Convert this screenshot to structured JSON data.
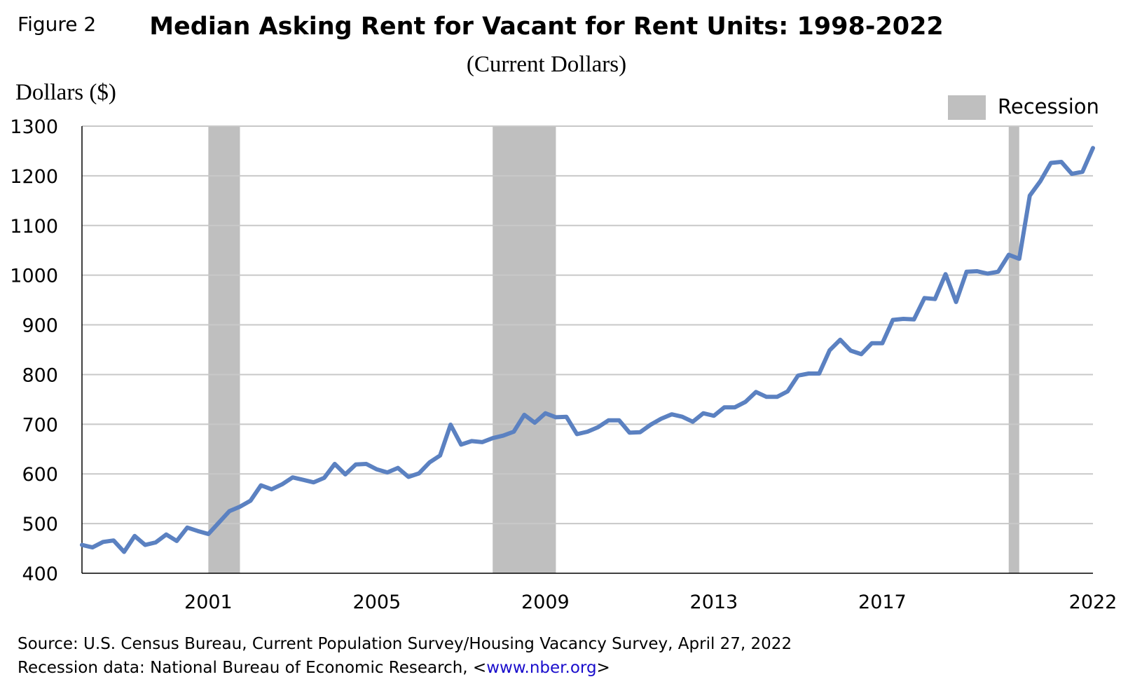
{
  "figure_label": "Figure 2",
  "chart_data": {
    "type": "line",
    "title": "Median Asking Rent for Vacant for Rent Units: 1998-2022",
    "subtitle": "(Current Dollars)",
    "ylabel": "Dollars ($)",
    "xlabel": "",
    "ylim": [
      400,
      1300
    ],
    "yticks": [
      400,
      500,
      600,
      700,
      800,
      900,
      1000,
      1100,
      1200,
      1300
    ],
    "xlim": [
      "1998-Q1",
      "2022-Q1"
    ],
    "xticks": [
      {
        "label": "2001",
        "year": 2001,
        "quarter": 1
      },
      {
        "label": "2005",
        "year": 2005,
        "quarter": 1
      },
      {
        "label": "2009",
        "year": 2009,
        "quarter": 1
      },
      {
        "label": "2013",
        "year": 2013,
        "quarter": 1
      },
      {
        "label": "2017",
        "year": 2017,
        "quarter": 1
      },
      {
        "label": "2022",
        "year": 2022,
        "quarter": 1
      }
    ],
    "grid": "horizontal",
    "line_color": "#5b81c1",
    "recession_color": "#bfbfbf",
    "legend": {
      "position": "top-right",
      "items": [
        {
          "label": "Recession",
          "color": "#bfbfbf"
        }
      ]
    },
    "recessions": [
      {
        "start": "2001-Q1",
        "end": "2001-Q4"
      },
      {
        "start": "2007-Q4",
        "end": "2009-Q2"
      },
      {
        "start": "2020-Q1",
        "end": "2020-Q2"
      }
    ],
    "series": [
      {
        "start": "1998-Q1",
        "frequency": "quarterly",
        "values": [
          457,
          452,
          463,
          466,
          443,
          475,
          457,
          462,
          478,
          465,
          492,
          485,
          479,
          502,
          525,
          534,
          546,
          577,
          569,
          579,
          593,
          588,
          583,
          592,
          620,
          599,
          619,
          620,
          609,
          603,
          612,
          594,
          601,
          623,
          637,
          699,
          659,
          666,
          664,
          672,
          677,
          685,
          719,
          703,
          722,
          714,
          715,
          680,
          685,
          694,
          708,
          708,
          683,
          684,
          699,
          711,
          720,
          715,
          705,
          722,
          717,
          734,
          734,
          745,
          765,
          755,
          755,
          766,
          798,
          802,
          802,
          849,
          870,
          848,
          841,
          863,
          863,
          910,
          912,
          911,
          954,
          952,
          1002,
          946,
          1007,
          1008,
          1003,
          1007,
          1041,
          1033,
          1160,
          1189,
          1226,
          1228,
          1204,
          1208,
          1256
        ]
      }
    ]
  },
  "source": {
    "line1": "Source: U.S. Census Bureau, Current Population Survey/Housing Vacancy Survey, April 27, 2022",
    "line2_prefix": "Recession data: National Bureau of Economic Research, <",
    "link": "www.nber.org",
    "line2_suffix": ">"
  }
}
